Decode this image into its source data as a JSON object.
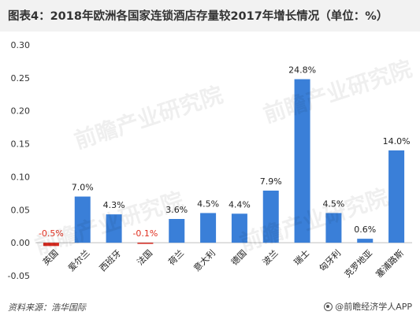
{
  "title": "图表4：2018年欧洲各国家连锁酒店存量较2017年增长情况（单位：%）",
  "watermark_text": "前瞻产业研究院",
  "footer": {
    "source": "资料来源：浩华国际",
    "brand": "@前瞻经济学人APP",
    "brand_icon": "qianzhan-logo-icon"
  },
  "colors": {
    "positive": "#3a7fd8",
    "negative": "#d62a20",
    "negative_label": "#e03020"
  },
  "chart_data": {
    "type": "bar",
    "title": "图表4：2018年欧洲各国家连锁酒店存量较2017年增长情况（单位：%）",
    "xlabel": "",
    "ylabel": "",
    "ylim": [
      -0.05,
      0.3
    ],
    "yticks": [
      "-0.05",
      "0.00",
      "0.05",
      "0.10",
      "0.15",
      "0.20",
      "0.25",
      "0.30"
    ],
    "grid": false,
    "legend": "none",
    "categories": [
      "英国",
      "爱尔兰",
      "西班牙",
      "法国",
      "荷兰",
      "意大利",
      "德国",
      "波兰",
      "瑞士",
      "匈牙利",
      "克罗地亚",
      "塞浦路斯"
    ],
    "values": [
      -0.005,
      0.07,
      0.043,
      -0.001,
      0.036,
      0.045,
      0.044,
      0.079,
      0.248,
      0.045,
      0.006,
      0.14
    ],
    "data_labels": [
      "-0.5%",
      "7.0%",
      "4.3%",
      "-0.1%",
      "3.6%",
      "4.5%",
      "4.4%",
      "7.9%",
      "24.8%",
      "4.5%",
      "0.6%",
      "14.0%"
    ]
  }
}
